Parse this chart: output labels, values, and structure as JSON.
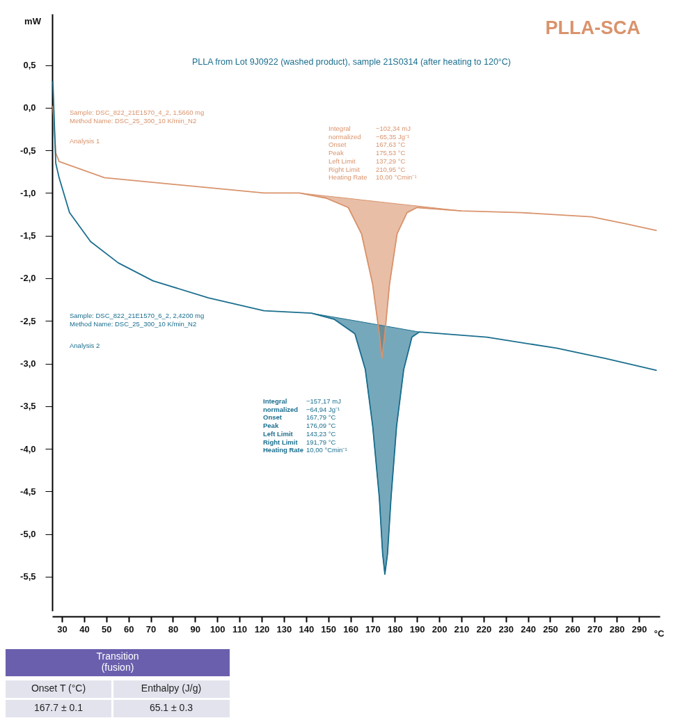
{
  "chart_data": {
    "type": "line",
    "title": "PLLA-SCA",
    "subtitle": "PLLA from Lot 9J0922 (washed product), sample 21S0314 (after heating to 120°C)",
    "xlabel": "°C",
    "ylabel": "mW",
    "xlim": [
      25.6,
      299.4
    ],
    "ylim": [
      -5.9,
      1.1
    ],
    "xticks": [
      30,
      40,
      50,
      60,
      70,
      80,
      90,
      100,
      110,
      120,
      130,
      140,
      150,
      160,
      170,
      180,
      190,
      200,
      210,
      220,
      230,
      240,
      250,
      260,
      270,
      280,
      290
    ],
    "yticks": [
      {
        "value": 0.5,
        "label": "0,5"
      },
      {
        "value": 0,
        "label": "0,0"
      },
      {
        "value": -0.5,
        "label": "-0,5"
      },
      {
        "value": -1,
        "label": "-1,0"
      },
      {
        "value": -1.5,
        "label": "-1,5"
      },
      {
        "value": -2,
        "label": "-2,0"
      },
      {
        "value": -2.5,
        "label": "-2,5"
      },
      {
        "value": -3,
        "label": "-3,0"
      },
      {
        "value": -3.5,
        "label": "-3,5"
      },
      {
        "value": -4,
        "label": "-4,0"
      },
      {
        "value": -4.5,
        "label": "-4,5"
      },
      {
        "value": -5,
        "label": "-5,0"
      },
      {
        "value": -5.5,
        "label": "-5,5"
      }
    ],
    "grid": false,
    "marker": "none",
    "line_style": "solid",
    "series": [
      {
        "color": "#d9936c",
        "x": [
          25.9,
          27.2,
          28.7,
          49.1,
          121,
          137,
          149,
          159,
          165,
          170,
          173,
          174.2,
          175.5,
          177.6,
          181,
          185.5,
          190,
          210,
          237,
          268.6,
          284,
          298
        ],
        "values": [
          0.02,
          -0.53,
          -0.63,
          -0.82,
          -1.0,
          -1.0,
          -1.06,
          -1.17,
          -1.48,
          -2.07,
          -2.65,
          -2.94,
          -2.65,
          -2.07,
          -1.48,
          -1.23,
          -1.17,
          -1.21,
          -1.23,
          -1.28,
          -1.36,
          -1.44
        ],
        "lower": [
          null,
          null,
          null,
          null,
          null,
          -1.0,
          -1.06,
          -1.17,
          -1.48,
          -2.07,
          -2.65,
          -2.94,
          -2.65,
          -2.07,
          -1.48,
          -1.23,
          -1.17,
          -1.21,
          null,
          null,
          null,
          null
        ],
        "upper": [
          null,
          null,
          null,
          null,
          null,
          -1.0,
          -1.035,
          -1.063,
          -1.081,
          -1.095,
          -1.104,
          -1.107,
          -1.111,
          -1.117,
          -1.127,
          -1.14,
          -1.152,
          -1.21,
          null,
          null,
          null,
          null
        ]
      },
      {
        "color": "#1a6e8e",
        "x": [
          25.9,
          27.2,
          28.7,
          33.4,
          42.9,
          55.4,
          71,
          96,
          121,
          142.5,
          152.6,
          162,
          166.7,
          170,
          173,
          174.5,
          175.5,
          176.7,
          178.3,
          180.8,
          184,
          187.7,
          191,
          221.5,
          252.9,
          274.8,
          298
        ],
        "values": [
          0.31,
          -0.65,
          -0.82,
          -1.23,
          -1.57,
          -1.82,
          -2.03,
          -2.23,
          -2.38,
          -2.41,
          -2.48,
          -2.65,
          -3.07,
          -3.73,
          -4.57,
          -5.23,
          -5.47,
          -5.23,
          -4.57,
          -3.73,
          -3.07,
          -2.69,
          -2.63,
          -2.69,
          -2.82,
          -2.94,
          -3.08
        ],
        "lower": [
          null,
          null,
          null,
          null,
          null,
          null,
          null,
          null,
          null,
          -2.41,
          -2.48,
          -2.65,
          -3.07,
          -3.73,
          -4.57,
          -5.23,
          -5.47,
          -5.23,
          -4.57,
          -3.73,
          -3.07,
          -2.69,
          -2.63,
          null,
          null,
          null,
          null
        ],
        "upper": [
          null,
          null,
          null,
          null,
          null,
          null,
          null,
          null,
          null,
          -2.41,
          -2.456,
          -2.498,
          -2.519,
          -2.534,
          -2.548,
          -2.555,
          -2.559,
          -2.565,
          -2.572,
          -2.583,
          -2.598,
          -2.615,
          -2.63,
          null,
          null,
          null,
          null
        ]
      }
    ],
    "annotations": [
      "Sample: DSC_822_21E1570_4_2, 1,5660 mg\nMethod Name: DSC_25_300_10 K/min_N2",
      "Analysis 1",
      "Integral\nnormalized\nOnset\nPeak\nLeft Limit\nRight Limit\nHeating Rate",
      "−102,34 mJ\n−65,35 Jg⁻¹\n167,63 °C\n175,53 °C\n137,29 °C\n210,95 °C\n10,00 °Cmin⁻¹",
      "Sample: DSC_822_21E1570_6_2, 2,4200 mg\nMethod Name: DSC_25_300_10 K/min_N2",
      "Analysis 2",
      "Integral\nnormalized\nOnset\nPeak\nLeft Limit\nRight Limit\nHeating Rate",
      "−157,17 mJ\n−64,94 Jg⁻¹\n167,79 °C\n176,09 °C\n143,23 °C\n191,79 °C\n10,00 °Cmin⁻¹",
      "Transition\n(fusion)",
      "Onset T (°C)",
      "Enthalpy (J/g)",
      "167.7 ± 0.1",
      "65.1 ± 0.3"
    ]
  }
}
